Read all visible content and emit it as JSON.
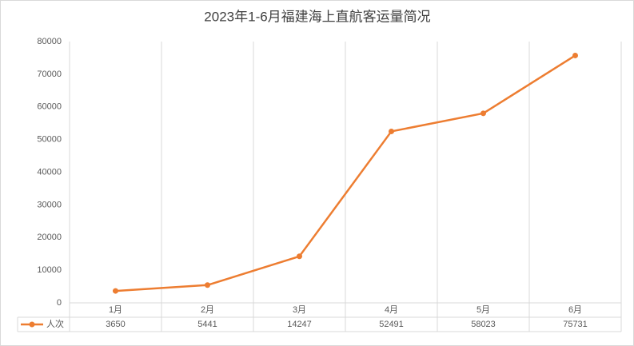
{
  "chart_data": {
    "type": "line",
    "title": "2023年1-6月福建海上直航客运量简况",
    "categories": [
      "1月",
      "2月",
      "3月",
      "4月",
      "5月",
      "6月"
    ],
    "series": [
      {
        "name": "人次",
        "color": "#ed7d31",
        "values": [
          3650,
          5441,
          14247,
          52491,
          58023,
          75731
        ]
      }
    ],
    "ylim": [
      0,
      80000
    ],
    "yticks": [
      0,
      10000,
      20000,
      30000,
      40000,
      50000,
      60000,
      70000,
      80000
    ],
    "grid": false,
    "data_table": true
  }
}
